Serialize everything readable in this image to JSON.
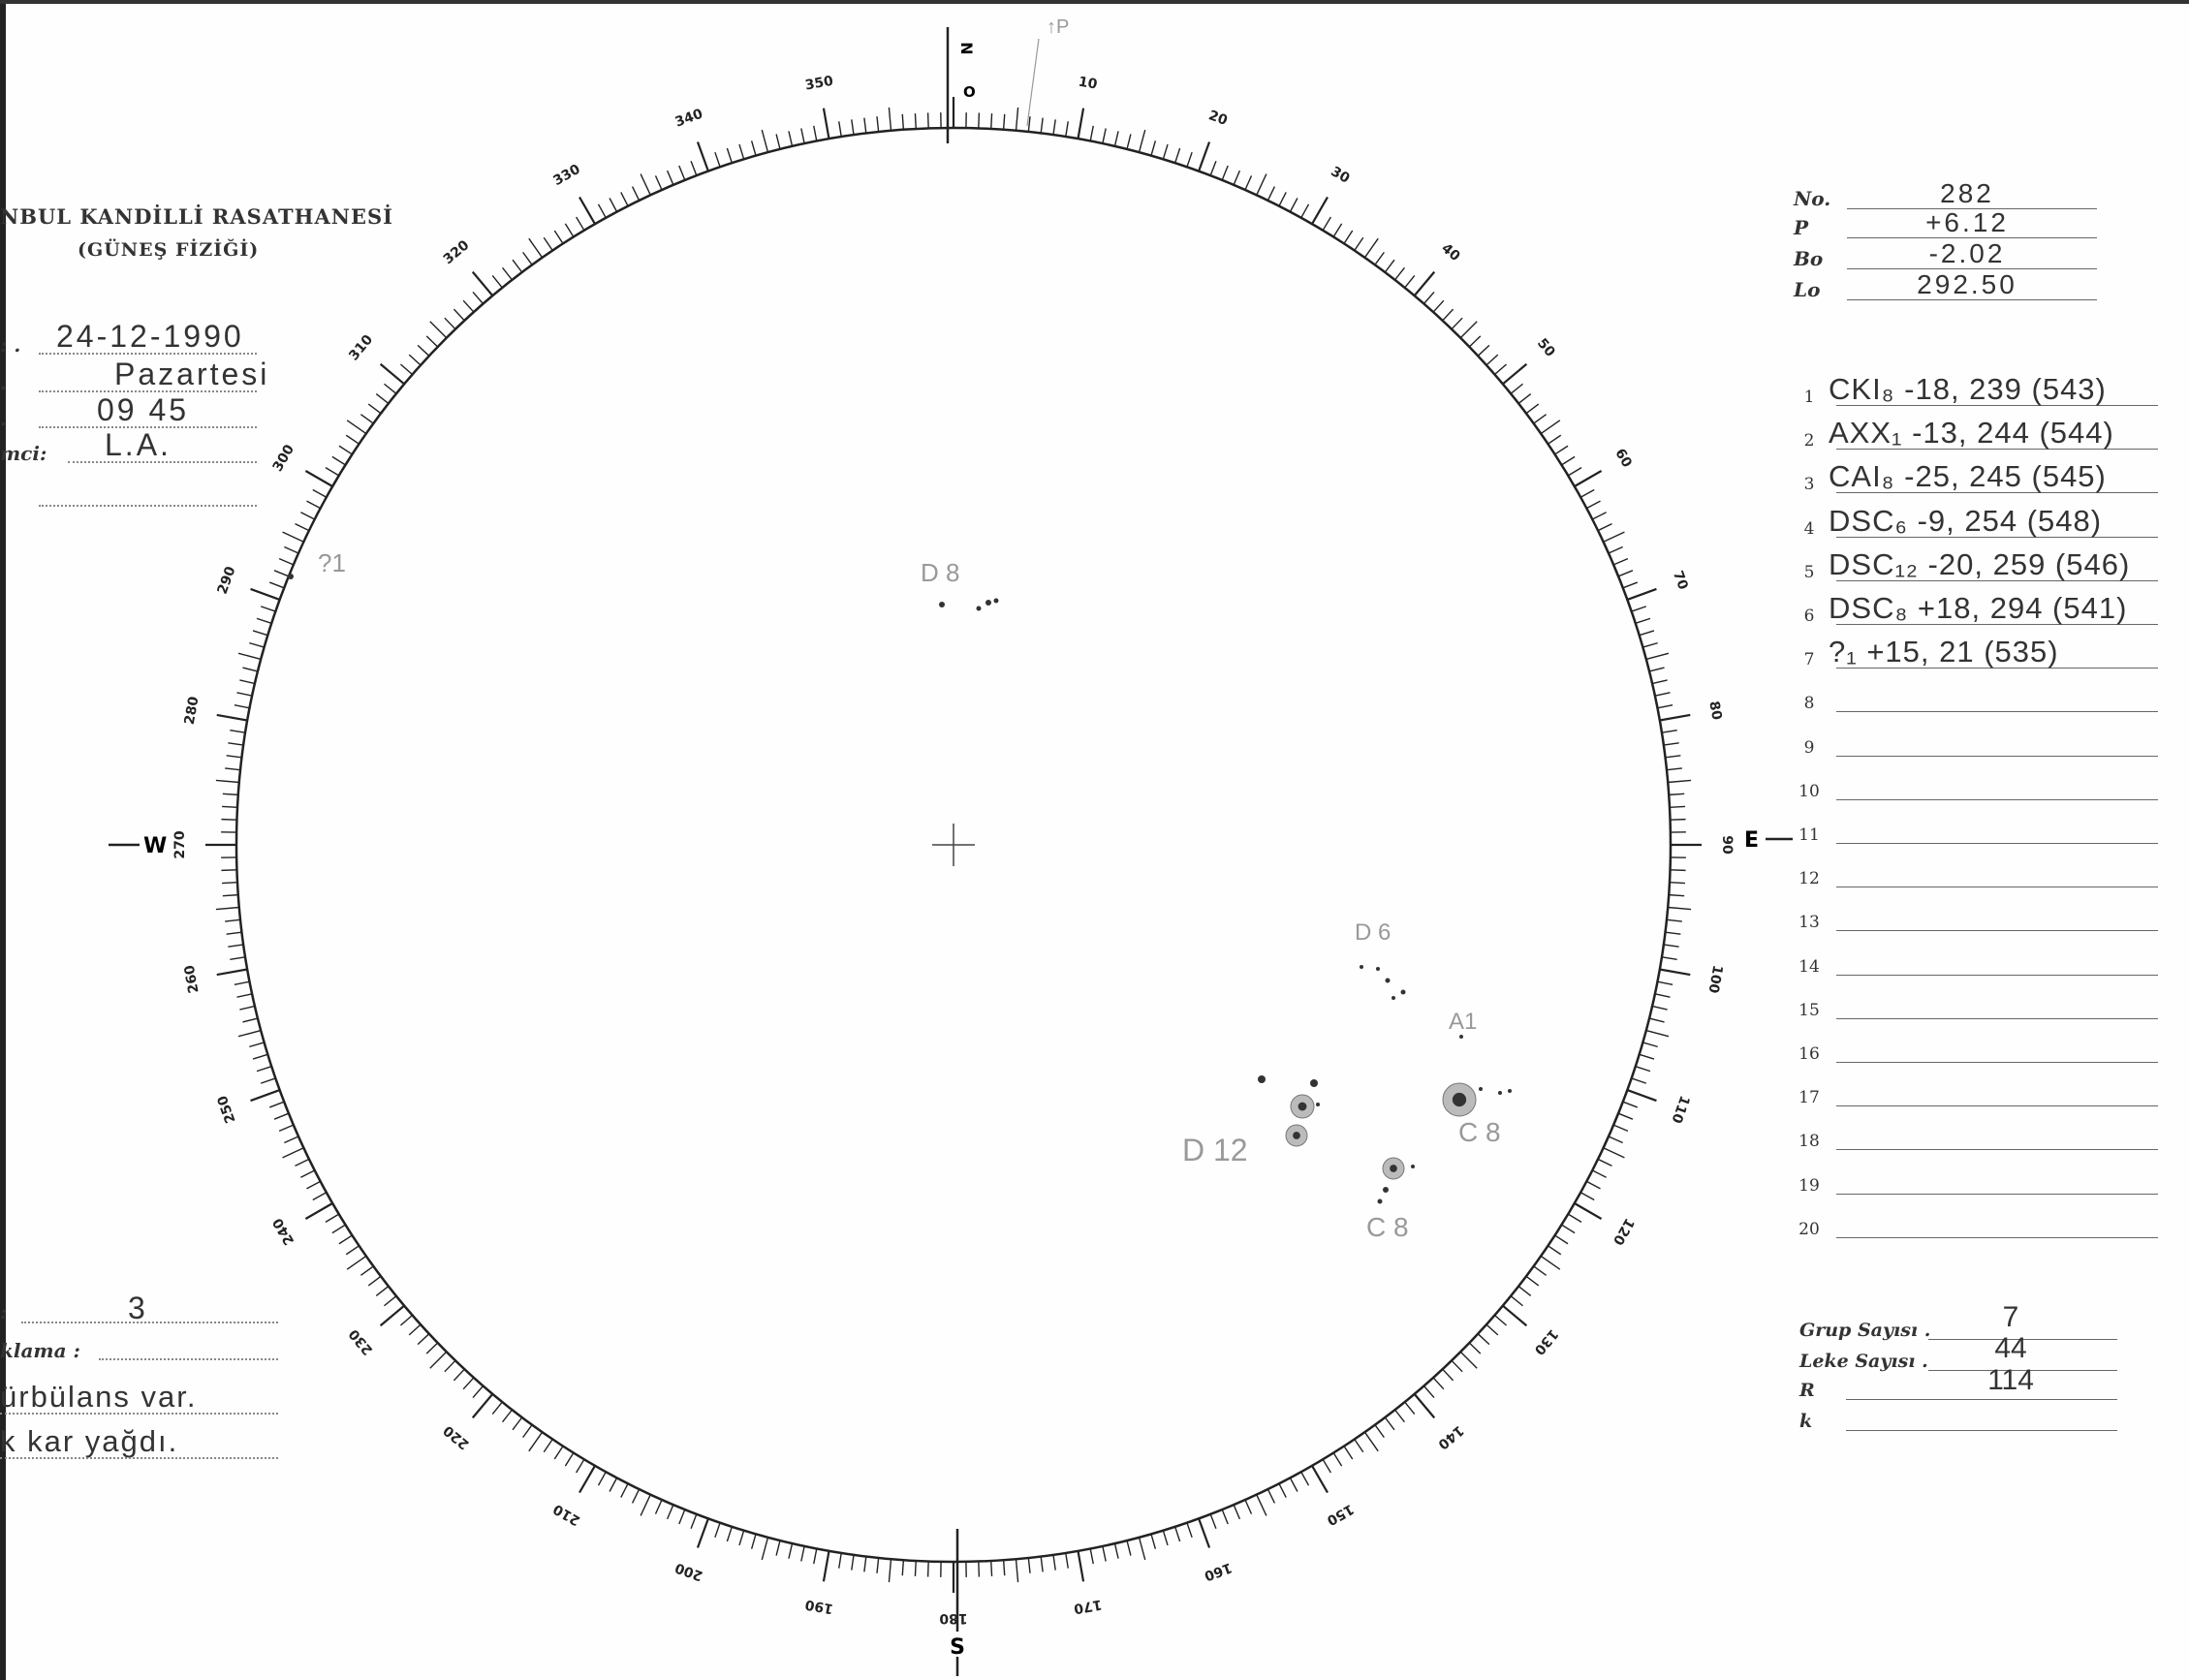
{
  "header": {
    "institution": "NBUL KANDİLLİ RASATHANESİ",
    "department": "(GÜNEŞ FİZİĞİ)"
  },
  "observation_fields": [
    {
      "label": ": .",
      "value": "24-12-1990"
    },
    {
      "label": ".",
      "value": "Pazartesi"
    },
    {
      "label": ".",
      "value": "09 45"
    },
    {
      "label": "mci:",
      "value": "L.A."
    },
    {
      "label": "",
      "value": ""
    }
  ],
  "bottom_fields": {
    "quality_label": ":",
    "quality_value": "3",
    "remark_label": "klama :",
    "remark_lines": [
      "ürbülans var.",
      "k kar yağdı."
    ]
  },
  "parameters": [
    {
      "label": "No.",
      "value": "282"
    },
    {
      "label": "P",
      "value": "+6.12"
    },
    {
      "label": "Bo",
      "value": "-2.02"
    },
    {
      "label": "Lo",
      "value": "292.50"
    }
  ],
  "groups": [
    {
      "n": "1",
      "entry": "CKI₈ -18, 239 (543)"
    },
    {
      "n": "2",
      "entry": "AXX₁ -13, 244 (544)"
    },
    {
      "n": "3",
      "entry": "CAI₈ -25, 245 (545)"
    },
    {
      "n": "4",
      "entry": "DSC₆ -9, 254 (548)"
    },
    {
      "n": "5",
      "entry": "DSC₁₂ -20, 259 (546)"
    },
    {
      "n": "6",
      "entry": "DSC₈ +18, 294 (541)"
    },
    {
      "n": "7",
      "entry": "?₁ +15, 21 (535)"
    },
    {
      "n": "8",
      "entry": ""
    },
    {
      "n": "9",
      "entry": ""
    },
    {
      "n": "10",
      "entry": ""
    },
    {
      "n": "11",
      "entry": ""
    },
    {
      "n": "12",
      "entry": ""
    },
    {
      "n": "13",
      "entry": ""
    },
    {
      "n": "14",
      "entry": ""
    },
    {
      "n": "15",
      "entry": ""
    },
    {
      "n": "16",
      "entry": ""
    },
    {
      "n": "17",
      "entry": ""
    },
    {
      "n": "18",
      "entry": ""
    },
    {
      "n": "19",
      "entry": ""
    },
    {
      "n": "20",
      "entry": ""
    }
  ],
  "summary": [
    {
      "label": "Grup Sayısı .",
      "value": "7"
    },
    {
      "label": "Leke Sayısı .",
      "value": "44"
    },
    {
      "label": "R",
      "value": "114"
    },
    {
      "label": "k",
      "value": ""
    }
  ],
  "disk": {
    "north": "N",
    "north_zero": "O",
    "south": "S",
    "east": "E",
    "west": "W",
    "pole_mark": "↑P",
    "tick_labels": [
      "0",
      "10",
      "20",
      "30",
      "40",
      "50",
      "60",
      "70",
      "80",
      "90",
      "100",
      "110",
      "120",
      "130",
      "140",
      "150",
      "160",
      "170",
      "180",
      "190",
      "200",
      "210",
      "220",
      "230",
      "240",
      "250",
      "260",
      "270",
      "280",
      "290",
      "300",
      "310",
      "320",
      "330",
      "340",
      "350"
    ],
    "group_annotations": [
      "D 8",
      "D 6",
      "A1",
      "C 8",
      "D 12",
      "C 8",
      "?1"
    ]
  },
  "colors": {
    "ink": "#222222",
    "pencil": "#8a8a8a",
    "paper": "#fefefe"
  }
}
